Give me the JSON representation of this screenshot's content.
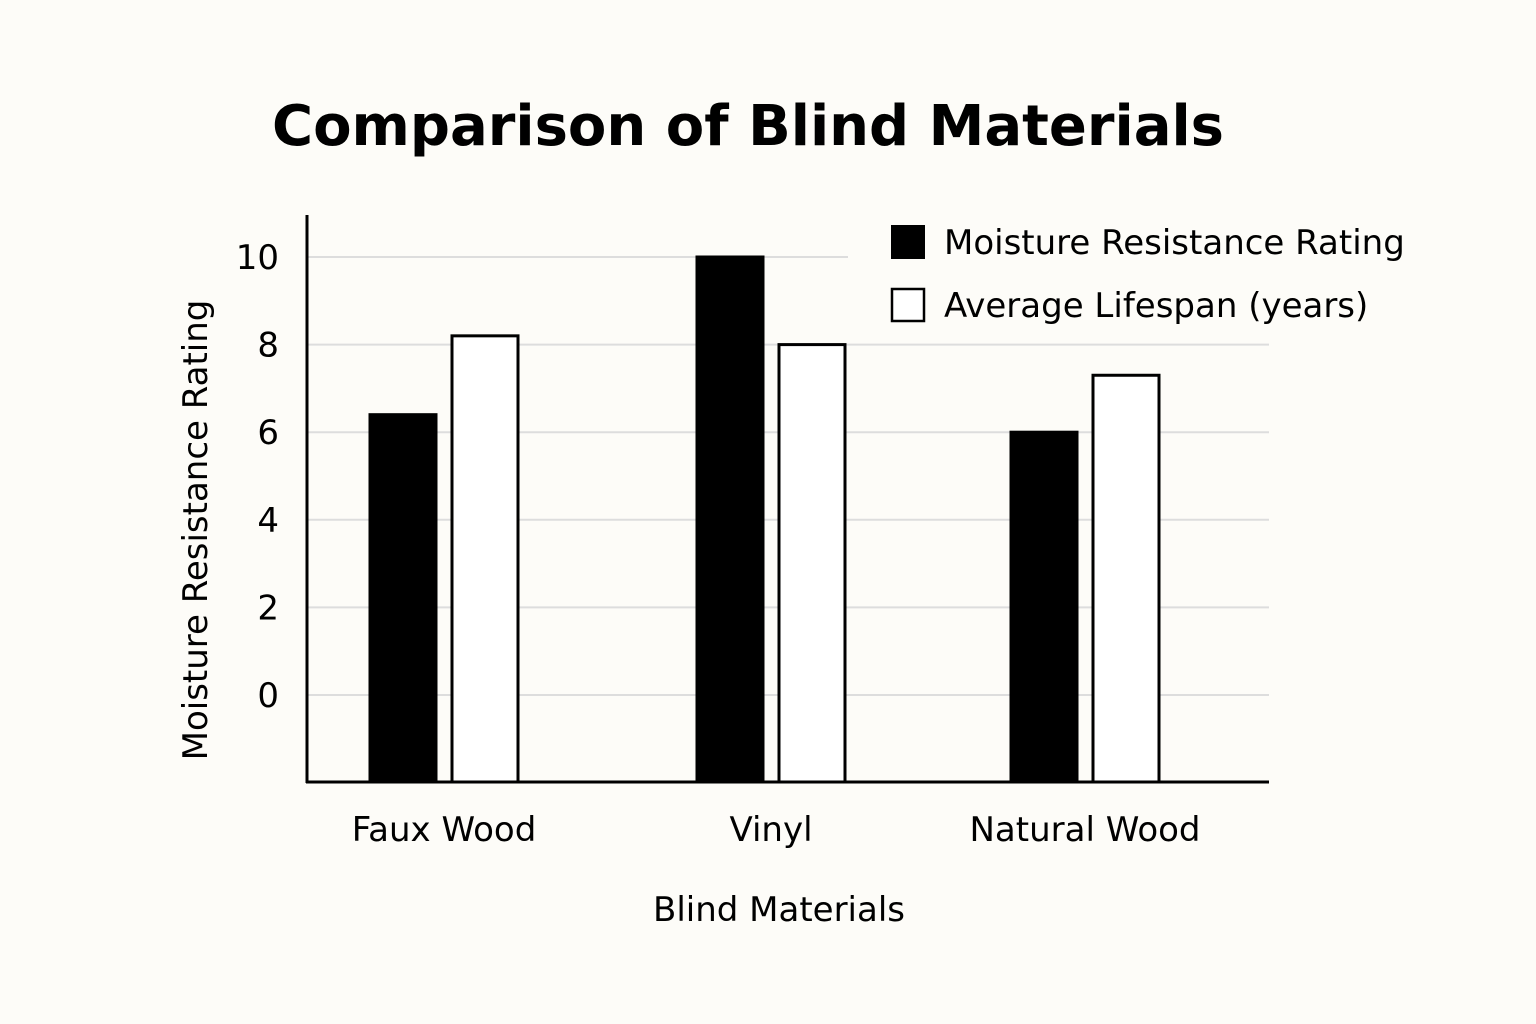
{
  "colors": {
    "background": "#fdfcf8",
    "series_fill_1": "#000000",
    "series_fill_2": "#ffffff",
    "stroke": "#000000",
    "grid": "#dddddd"
  },
  "chart_data": {
    "type": "bar",
    "title": "Comparison of Blind Materials",
    "xlabel": "Blind Materials",
    "ylabel": "Moisture Resistance Rating",
    "categories": [
      "Faux Wood",
      "Vinyl",
      "Natural Wood"
    ],
    "series": [
      {
        "name": "Moisture Resistance Rating",
        "values": [
          6.4,
          10.0,
          6.0
        ]
      },
      {
        "name": "Average Lifespan (years)",
        "values": [
          8.2,
          8.0,
          7.3
        ]
      }
    ],
    "yticks": [
      0,
      2,
      4,
      6,
      8,
      10
    ],
    "ylim": [
      -2,
      11
    ],
    "grid": true,
    "legend_position": "top-right"
  }
}
